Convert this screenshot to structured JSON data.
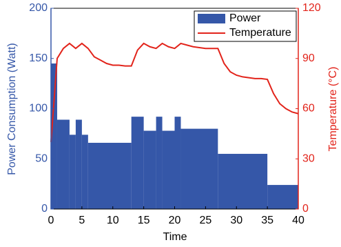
{
  "chart_data": {
    "type": "combo",
    "xlabel": "Time",
    "ylabel": "Power Consumption (Watt)",
    "y2label": "Temperature (°C)",
    "xlim": [
      0,
      40
    ],
    "xticks": [
      0,
      5,
      10,
      15,
      20,
      25,
      30,
      35,
      40
    ],
    "ylim": [
      0,
      200
    ],
    "yticks": [
      0,
      50,
      100,
      150,
      200
    ],
    "y2lim": [
      0,
      120
    ],
    "y2ticks": [
      0,
      30,
      60,
      90,
      120
    ],
    "legend": "top-right",
    "series": [
      {
        "name": "Power",
        "type": "bar",
        "color": "#3557a8",
        "bins": [
          0,
          1,
          3,
          4,
          5,
          6,
          13,
          15,
          17,
          18,
          20,
          21,
          27,
          35,
          40
        ],
        "values": [
          145,
          89,
          74,
          89,
          74,
          66,
          92,
          78,
          92,
          78,
          92,
          80,
          55,
          24
        ]
      },
      {
        "name": "Temperature",
        "type": "line",
        "color": "#e2231a",
        "axis": "y2",
        "x": [
          0,
          1,
          2,
          3,
          4,
          5,
          6,
          7,
          8,
          9,
          10,
          11,
          12,
          13,
          14,
          15,
          16,
          17,
          18,
          19,
          20,
          21,
          22,
          23,
          24,
          25,
          26,
          27,
          28,
          29,
          30,
          31,
          32,
          33,
          34,
          35,
          36,
          37,
          38,
          39,
          40
        ],
        "values": [
          40,
          90,
          96,
          99,
          96,
          99,
          96,
          91,
          89,
          87,
          86,
          86,
          85.5,
          85.5,
          95,
          99,
          97,
          96,
          99,
          97,
          96,
          99,
          98,
          97,
          96.5,
          96,
          96,
          96,
          87,
          82,
          80,
          79,
          78.5,
          78,
          78,
          77.5,
          69,
          63,
          60,
          58,
          57
        ]
      }
    ]
  }
}
